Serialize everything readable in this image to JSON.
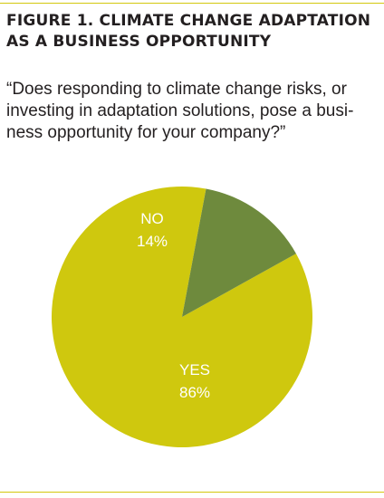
{
  "figure": {
    "title": "FIGURE 1. CLIMATE CHANGE ADAPTATION\nAS A BUSINESS OPPORTUNITY",
    "question": "“Does responding to climate change risks, or\ninvesting in adaptation solutions, pose a busi-\nness opportunity for your company?”"
  },
  "colors": {
    "yes": "#cfc80e",
    "no": "#6e8a3d",
    "rule": "#d3c80e",
    "label": "#ffffff"
  },
  "chart_data": {
    "type": "pie",
    "labels": [
      "YES",
      "NO"
    ],
    "values": [
      86,
      14
    ],
    "value_labels": [
      "86%",
      "14%"
    ],
    "colors": [
      "#cfc80e",
      "#6e8a3d"
    ]
  }
}
